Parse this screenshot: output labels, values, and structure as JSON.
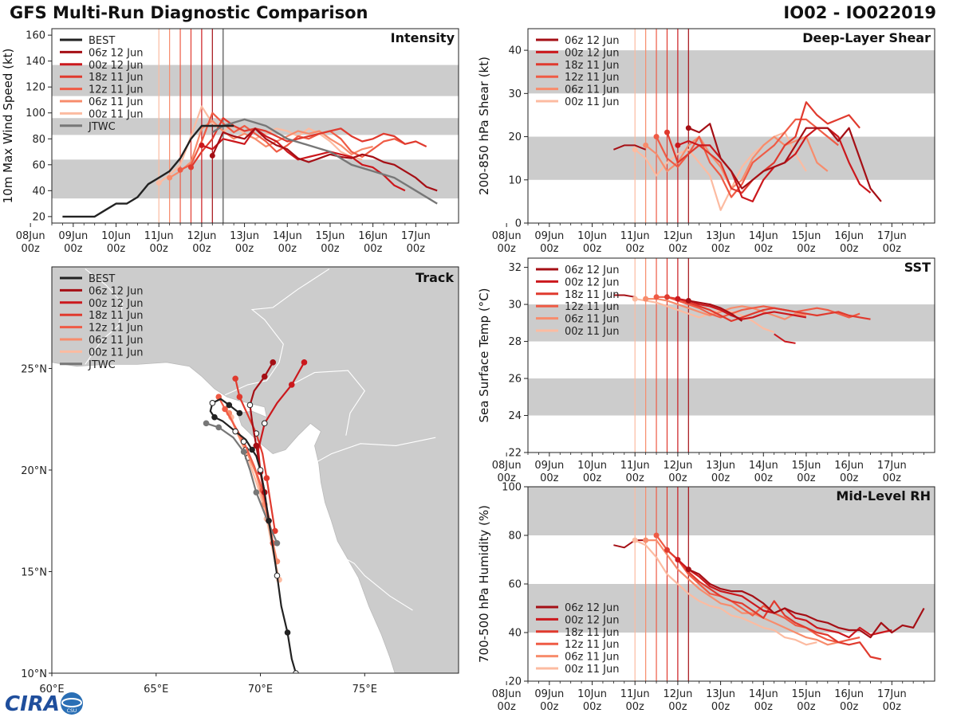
{
  "header": {
    "title": "GFS Multi-Run Diagnostic Comparison",
    "storm": "IO02 - IO022019"
  },
  "logo": {
    "text": "CIRA",
    "sub": "CSU"
  },
  "runs": [
    {
      "name": "06z 12 Jun",
      "color": "#a50f15",
      "t0": 4.25
    },
    {
      "name": "00z 12 Jun",
      "color": "#cb181d",
      "t0": 4.0
    },
    {
      "name": "18z 11 Jun",
      "color": "#e03a2e",
      "t0": 3.75
    },
    {
      "name": "12z 11 Jun",
      "color": "#ef5b45",
      "t0": 3.5
    },
    {
      "name": "06z 11 Jun",
      "color": "#f78c6c",
      "t0": 3.25
    },
    {
      "name": "00z 11 Jun",
      "color": "#fcbba1",
      "t0": 3.0
    }
  ],
  "time_ticks": [
    "08Jun",
    "09Jun",
    "10Jun",
    "11Jun",
    "12Jun",
    "13Jun",
    "14Jun",
    "15Jun",
    "16Jun",
    "17Jun"
  ],
  "time_sub": "00z",
  "chart_data": [
    {
      "id": "intensity",
      "type": "line",
      "title": "Intensity",
      "ylabel": "10m Max Wind Speed (kt)",
      "ylim": [
        15,
        165
      ],
      "yticks": [
        20,
        40,
        60,
        80,
        100,
        120,
        140,
        160
      ],
      "bands": [
        [
          34,
          64
        ],
        [
          83,
          96
        ],
        [
          113,
          137
        ]
      ],
      "jtwc_line_t": 4.5,
      "legend": [
        "BEST",
        "06z 12 Jun",
        "00z 12 Jun",
        "18z 11 Jun",
        "12z 11 Jun",
        "06z 11 Jun",
        "00z 11 Jun",
        "JTWC"
      ],
      "best": {
        "name": "BEST",
        "color": "#222222",
        "t": [
          0.75,
          1.0,
          1.25,
          1.5,
          1.75,
          2.0,
          2.25,
          2.5,
          2.75,
          3.0,
          3.25,
          3.5,
          3.75,
          4.0,
          4.25,
          4.5,
          4.75
        ],
        "v": [
          20,
          20,
          20,
          20,
          25,
          30,
          30,
          35,
          45,
          50,
          55,
          65,
          80,
          90,
          90,
          90,
          90
        ]
      },
      "jtwc": {
        "name": "JTWC",
        "color": "#777777",
        "t": [
          4.25,
          4.5,
          5.0,
          5.5,
          6.0,
          6.5,
          7.0,
          7.5,
          8.0,
          8.5,
          9.0,
          9.5
        ],
        "v": [
          85,
          90,
          95,
          90,
          80,
          75,
          70,
          60,
          55,
          50,
          40,
          30
        ]
      },
      "series": [
        {
          "name": "06z 12 Jun",
          "v": [
            67,
            85,
            82,
            80,
            88,
            80,
            75,
            72,
            65,
            62,
            65,
            68,
            66,
            65,
            68,
            66,
            62,
            60,
            55,
            50,
            43,
            40
          ]
        },
        {
          "name": "00z 12 Jun",
          "v": [
            75,
            72,
            80,
            78,
            76,
            88,
            82,
            78,
            70,
            64,
            66,
            68,
            70,
            68,
            66,
            60,
            58,
            52,
            44,
            40
          ]
        },
        {
          "name": "18z 11 Jun",
          "v": [
            58,
            70,
            80,
            96,
            90,
            86,
            88,
            86,
            82,
            78,
            80,
            82,
            84,
            86,
            88,
            82,
            78,
            80,
            84,
            82,
            76,
            78,
            74
          ]
        },
        {
          "name": "12z 11 Jun",
          "v": [
            56,
            60,
            78,
            100,
            92,
            85,
            90,
            84,
            78,
            70,
            75,
            82,
            80,
            84,
            86,
            80,
            70,
            66,
            72,
            78,
            80,
            76
          ]
        },
        {
          "name": "06z 11 Jun",
          "v": [
            50,
            55,
            62,
            88,
            94,
            86,
            80,
            84,
            80,
            74,
            78,
            82,
            86,
            84,
            86,
            80,
            75,
            68,
            72,
            74
          ]
        },
        {
          "name": "00z 11 Jun",
          "v": [
            46,
            52,
            60,
            82,
            105,
            92,
            86,
            90,
            84,
            80,
            84,
            88,
            86,
            82,
            88,
            84,
            78,
            70,
            66,
            64
          ]
        }
      ]
    },
    {
      "id": "shear",
      "type": "line",
      "title": "Deep-Layer Shear",
      "ylabel": "200-850 hPa Shear (kt)",
      "ylim": [
        0,
        45
      ],
      "yticks": [
        0,
        10,
        20,
        30,
        40
      ],
      "bands": [
        [
          10,
          20
        ],
        [
          30,
          40
        ]
      ],
      "legend": [
        "06z 12 Jun",
        "00z 12 Jun",
        "18z 11 Jun",
        "12z 11 Jun",
        "06z 11 Jun",
        "00z 11 Jun"
      ],
      "series": [
        {
          "name": "06z 12 Jun",
          "v": [
            22,
            21,
            23,
            15,
            12,
            8,
            10,
            12,
            13,
            14,
            18,
            22,
            22,
            22,
            19,
            22,
            15,
            8,
            5
          ]
        },
        {
          "name": "00z 12 Jun",
          "v": [
            18,
            19,
            18,
            18,
            15,
            12,
            6,
            5,
            10,
            13,
            14,
            16,
            20,
            22,
            22,
            20,
            14,
            9,
            7
          ]
        },
        {
          "name": "18z 11 Jun",
          "v": [
            21,
            14,
            16,
            18,
            16,
            14,
            8,
            7,
            10,
            12,
            14,
            18,
            20,
            28,
            25,
            23,
            24,
            25,
            22
          ]
        },
        {
          "name": "12z 11 Jun",
          "v": [
            20,
            15,
            13,
            16,
            20,
            14,
            11,
            6,
            9,
            14,
            16,
            18,
            21,
            24,
            24,
            22,
            20,
            18
          ]
        },
        {
          "name": "06z 11 Jun",
          "v": [
            18,
            16,
            12,
            14,
            18,
            20,
            16,
            13,
            8,
            10,
            15,
            18,
            20,
            18,
            19,
            20,
            14,
            12
          ]
        },
        {
          "name": "00z 11 Jun",
          "v": [
            17,
            15,
            11,
            14,
            16,
            17,
            14,
            11,
            3,
            8,
            13,
            16,
            18,
            20,
            21,
            16,
            12
          ]
        }
      ],
      "pre_series": {
        "t": [
          2.5,
          2.75,
          3.0,
          3.25
        ],
        "v": [
          17,
          18,
          18,
          17
        ]
      }
    },
    {
      "id": "sst",
      "type": "line",
      "title": "SST",
      "ylabel": "Sea Surface Temp (°C)",
      "ylim": [
        22,
        32.5
      ],
      "yticks": [
        22,
        24,
        26,
        28,
        30,
        32
      ],
      "bands": [
        [
          24,
          26
        ],
        [
          28,
          30
        ]
      ],
      "legend": [
        "06z 12 Jun",
        "00z 12 Jun",
        "18z 11 Jun",
        "12z 11 Jun",
        "06z 11 Jun",
        "00z 11 Jun"
      ],
      "series": [
        {
          "name": "06z 12 Jun",
          "v": [
            30.2,
            30.1,
            30.0,
            29.8,
            29.5,
            29.1
          ]
        },
        {
          "name": "00z 12 Jun",
          "v": [
            30.3,
            30.2,
            30.0,
            29.9,
            29.7,
            29.4,
            29.2,
            29.3,
            29.5,
            29.6,
            29.5,
            29.4,
            29.3
          ]
        },
        {
          "name": "18z 11 Jun",
          "v": [
            30.4,
            30.3,
            30.1,
            29.9,
            29.7,
            29.4,
            29.1,
            29.3,
            29.5,
            29.7,
            29.8,
            29.7,
            29.6,
            29.5,
            29.4,
            29.5,
            29.6,
            29.4,
            29.3,
            29.2
          ]
        },
        {
          "name": "12z 11 Jun",
          "v": [
            30.4,
            30.4,
            30.2,
            30.0,
            29.8,
            29.5,
            29.3,
            29.5,
            29.7,
            29.8,
            29.9,
            29.8,
            29.7,
            29.6,
            29.7,
            29.8,
            29.7,
            29.5,
            29.3,
            29.5
          ]
        },
        {
          "name": "06z 11 Jun",
          "v": [
            30.3,
            30.3,
            30.2,
            30.0,
            29.8,
            29.6,
            29.4,
            29.6,
            29.8,
            29.9,
            29.8,
            29.6,
            29.4,
            29.2,
            29.5,
            29.4
          ]
        },
        {
          "name": "00z 11 Jun",
          "v": [
            30.3,
            30.2,
            30.1,
            29.9,
            29.7,
            29.5,
            29.3,
            29.5,
            29.7,
            29.6,
            29.4,
            29.1,
            28.7,
            28.5
          ]
        }
      ],
      "pre_series": {
        "t": [
          2.5,
          2.75,
          3.0
        ],
        "v": [
          30.5,
          30.5,
          30.4
        ]
      },
      "fragment": {
        "t": [
          6.25,
          6.5,
          6.75
        ],
        "v": [
          28.4,
          28.0,
          27.9
        ]
      }
    },
    {
      "id": "rh",
      "type": "line",
      "title": "Mid-Level RH",
      "ylabel": "700-500 hPa Humidity (%)",
      "ylim": [
        20,
        100
      ],
      "yticks": [
        20,
        40,
        60,
        80,
        100
      ],
      "bands": [
        [
          40,
          60
        ],
        [
          80,
          100
        ]
      ],
      "legend": [
        "06z 12 Jun",
        "00z 12 Jun",
        "18z 11 Jun",
        "12z 11 Jun",
        "06z 11 Jun",
        "00z 11 Jun"
      ],
      "series": [
        {
          "name": "06z 12 Jun",
          "v": [
            66,
            64,
            60,
            58,
            57,
            57,
            55,
            52,
            48,
            50,
            48,
            47,
            45,
            44,
            42,
            41,
            41,
            38,
            44,
            40,
            43,
            42,
            50
          ]
        },
        {
          "name": "00z 12 Jun",
          "v": [
            70,
            66,
            63,
            59,
            57,
            56,
            55,
            52,
            49,
            48,
            50,
            46,
            45,
            42,
            41,
            40,
            38,
            42,
            39,
            40,
            41
          ]
        },
        {
          "name": "18z 11 Jun",
          "v": [
            74,
            70,
            65,
            61,
            58,
            55,
            53,
            52,
            49,
            46,
            53,
            47,
            44,
            42,
            40,
            39,
            36,
            35,
            36,
            30,
            29
          ]
        },
        {
          "name": "12z 11 Jun",
          "v": [
            80,
            74,
            70,
            64,
            60,
            56,
            55,
            53,
            50,
            47,
            51,
            48,
            46,
            43,
            42,
            39,
            37,
            36,
            37,
            38
          ]
        },
        {
          "name": "06z 11 Jun",
          "v": [
            78,
            78,
            72,
            66,
            62,
            58,
            55,
            52,
            51,
            48,
            48,
            46,
            44,
            42,
            40,
            38,
            37,
            35,
            36
          ]
        },
        {
          "name": "00z 11 Jun",
          "v": [
            78,
            76,
            71,
            64,
            60,
            56,
            53,
            51,
            50,
            47,
            46,
            44,
            42,
            41,
            38,
            37,
            35,
            36
          ]
        }
      ],
      "pre_series": {
        "t": [
          2.5,
          2.75,
          3.0,
          3.25
        ],
        "v": [
          76,
          75,
          78,
          78
        ]
      }
    },
    {
      "id": "track",
      "type": "map",
      "title": "Track",
      "xlim": [
        60,
        79.5
      ],
      "ylim": [
        10,
        30
      ],
      "xticks": [
        60,
        65,
        70,
        75
      ],
      "yticks": [
        10,
        15,
        20,
        25
      ],
      "xtick_labels": [
        "60°E",
        "65°E",
        "70°E",
        "75°E"
      ],
      "ytick_labels": [
        "10°N",
        "15°N",
        "20°N",
        "25°N"
      ],
      "legend": [
        "BEST",
        "06z 12 Jun",
        "00z 12 Jun",
        "18z 11 Jun",
        "12z 11 Jun",
        "06z 11 Jun",
        "00z 11 Jun",
        "JTWC"
      ],
      "land_color": "#cccccc",
      "best": {
        "lon": [
          71.7,
          71.5,
          71.3,
          71.0,
          70.8,
          70.6,
          70.4,
          70.2,
          70.0,
          69.8,
          69.6,
          69.3,
          68.8,
          68.2,
          67.8,
          67.6,
          67.7,
          68.1,
          68.5,
          69.0
        ],
        "lat": [
          10.0,
          10.7,
          12.0,
          13.3,
          14.8,
          16.2,
          17.5,
          18.9,
          20.0,
          20.7,
          21.0,
          21.5,
          21.9,
          22.4,
          22.6,
          22.9,
          23.3,
          23.5,
          23.2,
          22.8
        ]
      },
      "jtwc": {
        "lon": [
          70.8,
          70.3,
          69.8,
          69.5,
          69.2,
          68.7,
          68.0,
          67.4
        ],
        "lat": [
          16.4,
          17.6,
          18.9,
          20.0,
          20.9,
          21.6,
          22.1,
          22.3
        ]
      },
      "series": [
        {
          "name": "06z 12 Jun",
          "lon": [
            70.2,
            70.0,
            69.8,
            69.6,
            69.5,
            69.7,
            70.2,
            70.6
          ],
          "lat": [
            18.9,
            20.0,
            21.2,
            22.4,
            23.2,
            23.9,
            24.6,
            25.3
          ]
        },
        {
          "name": "00z 12 Jun",
          "lon": [
            70.4,
            70.2,
            70.0,
            69.9,
            70.2,
            70.8,
            71.5,
            72.1
          ],
          "lat": [
            17.5,
            18.7,
            19.9,
            21.0,
            22.3,
            23.3,
            24.2,
            25.3
          ]
        },
        {
          "name": "18z 11 Jun",
          "lon": [
            70.7,
            70.5,
            70.3,
            70.1,
            69.8,
            69.4,
            69.0,
            68.8
          ],
          "lat": [
            17.0,
            18.3,
            19.6,
            20.8,
            21.8,
            22.7,
            23.6,
            24.5
          ]
        },
        {
          "name": "12z 11 Jun",
          "lon": [
            70.6,
            70.4,
            70.1,
            69.7,
            69.2,
            68.7,
            68.3,
            68.0
          ],
          "lat": [
            16.4,
            17.7,
            19.0,
            20.2,
            21.4,
            22.3,
            23.0,
            23.6
          ]
        },
        {
          "name": "06z 11 Jun",
          "lon": [
            70.8,
            70.5,
            70.2,
            69.8,
            69.3,
            68.8,
            68.5
          ],
          "lat": [
            15.5,
            16.9,
            18.3,
            19.8,
            21.0,
            22.0,
            22.8
          ]
        },
        {
          "name": "00z 11 Jun",
          "lon": [
            70.9,
            70.6,
            70.3,
            69.9,
            69.4,
            68.9,
            68.6
          ],
          "lat": [
            14.6,
            16.0,
            17.6,
            19.1,
            20.6,
            21.8,
            22.6
          ]
        }
      ]
    }
  ]
}
